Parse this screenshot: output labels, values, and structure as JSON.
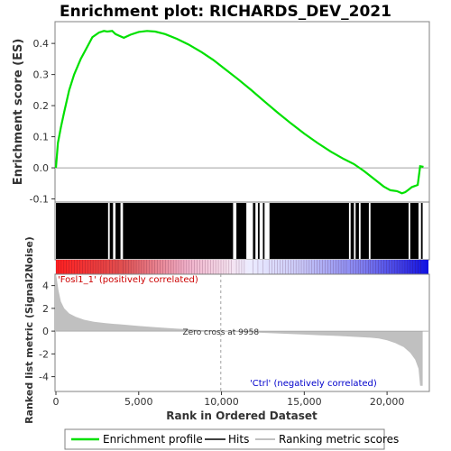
{
  "colors": {
    "enrichment": "#00e000",
    "hits": "#000000",
    "metric_fill": "#c0c0c0",
    "pos_label": "#cc0000",
    "neg_label": "#0000cc",
    "frame": "#808080",
    "zero_line": "#a0a0a0"
  },
  "chart_data": [
    {
      "type": "line",
      "title": "Enrichment plot: RICHARDS_DEV_2021",
      "ylabel": "Enrichment score (ES)",
      "xlim": [
        0,
        22500
      ],
      "ylim": [
        -0.11,
        0.47
      ],
      "yticks": [
        -0.1,
        0.0,
        0.1,
        0.2,
        0.3,
        0.4
      ],
      "ytick_labels": [
        "-0.1",
        "0.0",
        "0.1",
        "0.2",
        "0.3",
        "0.4"
      ],
      "series": [
        {
          "name": "Enrichment profile",
          "x": [
            0,
            120,
            300,
            500,
            800,
            1100,
            1500,
            1900,
            2200,
            2600,
            2900,
            3100,
            3400,
            3600,
            3800,
            4100,
            4500,
            5000,
            5500,
            6000,
            6600,
            7300,
            8000,
            8800,
            9500,
            10200,
            11000,
            11800,
            12600,
            13400,
            14200,
            15000,
            15800,
            16600,
            17400,
            18000,
            18600,
            19200,
            19800,
            20200,
            20600,
            20900,
            21100,
            21300,
            21500,
            21700,
            21850,
            22000,
            22200
          ],
          "y": [
            0.0,
            0.08,
            0.13,
            0.18,
            0.25,
            0.3,
            0.35,
            0.39,
            0.42,
            0.435,
            0.44,
            0.438,
            0.44,
            0.43,
            0.425,
            0.418,
            0.428,
            0.437,
            0.44,
            0.438,
            0.43,
            0.415,
            0.397,
            0.372,
            0.347,
            0.318,
            0.285,
            0.25,
            0.213,
            0.177,
            0.143,
            0.11,
            0.08,
            0.052,
            0.028,
            0.012,
            -0.01,
            -0.035,
            -0.06,
            -0.072,
            -0.075,
            -0.082,
            -0.078,
            -0.07,
            -0.062,
            -0.058,
            -0.055,
            0.005,
            0.003
          ]
        }
      ]
    },
    {
      "type": "area",
      "xlabel": "Rank in Ordered Dataset",
      "ylabel": "Ranked list metric (Signal2Noise)",
      "xlim": [
        0,
        22500
      ],
      "ylim": [
        -5.3,
        5.0
      ],
      "yticks": [
        -4,
        -2,
        0,
        2,
        4
      ],
      "ytick_labels": [
        "-4",
        "-2",
        "0",
        "2",
        "4"
      ],
      "xticks": [
        0,
        5000,
        10000,
        15000,
        20000
      ],
      "xtick_labels": [
        "0",
        "5,000",
        "10,000",
        "15,000",
        "20,000"
      ],
      "zero_cross_rank": 9958,
      "zero_cross_label": "Zero cross at 9958",
      "pos_label": "'Fosl1_1' (positively correlated)",
      "neg_label": "'Ctrl' (negatively correlated)",
      "series": [
        {
          "name": "Ranking metric scores",
          "x": [
            0,
            50,
            150,
            300,
            500,
            800,
            1200,
            1700,
            2300,
            3000,
            4000,
            5000,
            6000,
            7000,
            8000,
            9000,
            9958,
            11000,
            12000,
            13000,
            14000,
            15000,
            16000,
            17000,
            18000,
            19000,
            19500,
            20000,
            20500,
            21000,
            21400,
            21700,
            21900,
            22000,
            22150
          ],
          "y": [
            5.0,
            4.6,
            3.6,
            2.6,
            2.0,
            1.55,
            1.25,
            1.0,
            0.82,
            0.7,
            0.58,
            0.45,
            0.35,
            0.25,
            0.16,
            0.08,
            0.0,
            -0.06,
            -0.12,
            -0.18,
            -0.24,
            -0.3,
            -0.36,
            -0.42,
            -0.5,
            -0.58,
            -0.65,
            -0.8,
            -1.05,
            -1.4,
            -1.9,
            -2.5,
            -3.3,
            -4.8,
            -4.8
          ]
        }
      ]
    }
  ],
  "hits": {
    "blocks": [
      [
        0,
        3150
      ],
      [
        3250,
        3450
      ],
      [
        3600,
        3900
      ],
      [
        4050,
        10700
      ],
      [
        10900,
        11500
      ],
      [
        11900,
        12050
      ],
      [
        12200,
        12300
      ],
      [
        12500,
        12600
      ],
      [
        12900,
        17700
      ],
      [
        17800,
        18000
      ],
      [
        18100,
        18300
      ],
      [
        18400,
        18900
      ],
      [
        19000,
        21300
      ],
      [
        21400,
        21900
      ],
      [
        22050,
        22150
      ]
    ]
  },
  "legend": {
    "items": [
      {
        "label": "Enrichment profile",
        "color": "#00e000"
      },
      {
        "label": "Hits",
        "color": "#000000"
      },
      {
        "label": "Ranking metric scores",
        "color": "#c0c0c0"
      }
    ]
  }
}
